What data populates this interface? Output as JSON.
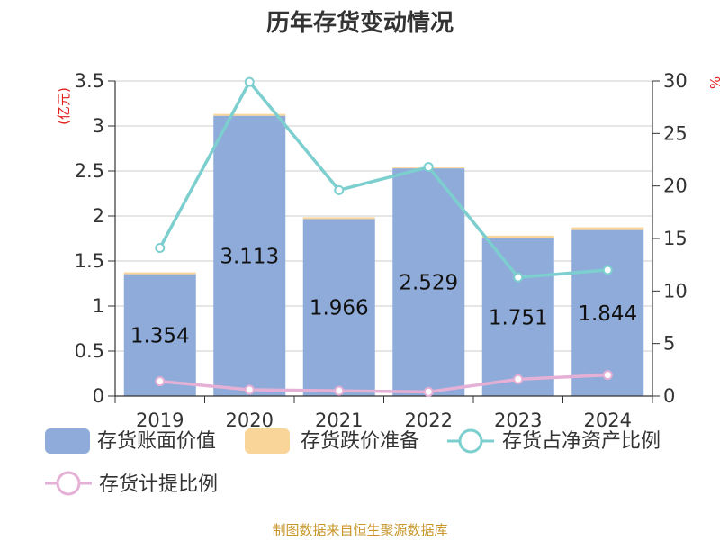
{
  "chart_data": {
    "type": "bar",
    "title": "历年存货变动情况",
    "categories": [
      "2019",
      "2020",
      "2021",
      "2022",
      "2023",
      "2024"
    ],
    "left_axis": {
      "unit_label": "(亿元)",
      "ylim": [
        0,
        3.5
      ],
      "ticks": [
        "0",
        "0.5",
        "1",
        "1.5",
        "2",
        "2.5",
        "3",
        "3.5"
      ]
    },
    "right_axis": {
      "unit_label": "%",
      "ylim": [
        0,
        30
      ],
      "ticks": [
        "0",
        "5",
        "10",
        "15",
        "20",
        "25",
        "30"
      ]
    },
    "grid": true,
    "legend_position": "bottom",
    "series": [
      {
        "name": "存货账面价值",
        "type": "bar",
        "axis": "left",
        "stack": "inv",
        "color": "#8eabd9",
        "values": [
          1.354,
          3.113,
          1.966,
          2.529,
          1.751,
          1.844
        ],
        "labels": [
          "1.354",
          "3.113",
          "1.966",
          "2.529",
          "1.751",
          "1.844"
        ]
      },
      {
        "name": "存货跌价准备",
        "type": "bar",
        "axis": "left",
        "stack": "inv",
        "color": "#fad59a",
        "values": [
          0.02,
          0.02,
          0.02,
          0.01,
          0.03,
          0.03
        ]
      },
      {
        "name": "存货占净资产比例",
        "type": "line",
        "axis": "right",
        "color": "#7dcfcf",
        "values": [
          14.1,
          29.9,
          19.6,
          21.8,
          11.3,
          12.0
        ]
      },
      {
        "name": "存货计提比例",
        "type": "line",
        "axis": "right",
        "color": "#e5b0d6",
        "values": [
          1.4,
          0.6,
          0.5,
          0.4,
          1.6,
          2.0
        ]
      }
    ],
    "source": "制图数据来自恒生聚源数据库"
  }
}
